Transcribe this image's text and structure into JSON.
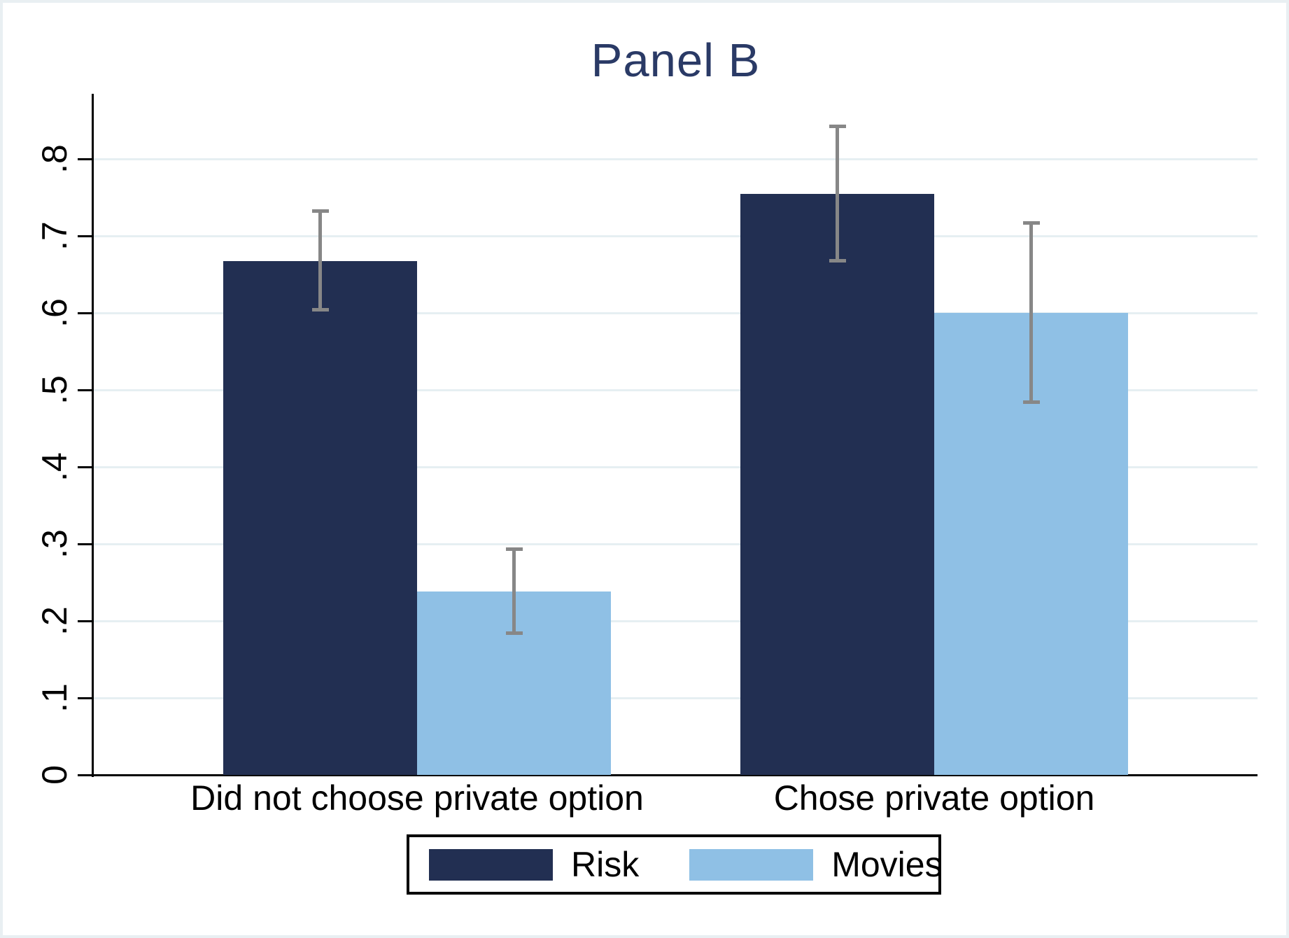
{
  "title": "Panel B",
  "colors": {
    "title_text": "#2a3a66",
    "bar_risk": "#222f52",
    "bar_movies": "#8fc0e5",
    "error_bar": "#878787",
    "gridline": "#e6eff2",
    "axis": "#000000",
    "frame": "#e9eff2",
    "legend_border": "#000000"
  },
  "chart_data": {
    "type": "bar",
    "title": "Panel B",
    "categories": [
      "Did not choose private option",
      "Chose private option"
    ],
    "series": [
      {
        "name": "Risk",
        "color": "#222f52",
        "values": [
          0.668,
          0.755
        ],
        "ci_low": [
          0.604,
          0.668
        ],
        "ci_high": [
          0.733,
          0.843
        ]
      },
      {
        "name": "Movies",
        "color": "#8fc0e5",
        "values": [
          0.238,
          0.6
        ],
        "ci_low": [
          0.184,
          0.484
        ],
        "ci_high": [
          0.293,
          0.717
        ]
      }
    ],
    "xlabel": "",
    "ylabel": "",
    "ylim": [
      0,
      0.885
    ],
    "yticks": [
      0,
      0.1,
      0.2,
      0.3,
      0.4,
      0.5,
      0.6,
      0.7,
      0.8
    ],
    "ytick_labels": [
      "0",
      ".1",
      ".2",
      ".3",
      ".4",
      ".5",
      ".6",
      ".7",
      ".8"
    ],
    "grid": true,
    "legend_position": "bottom-center",
    "error_bars": true
  }
}
